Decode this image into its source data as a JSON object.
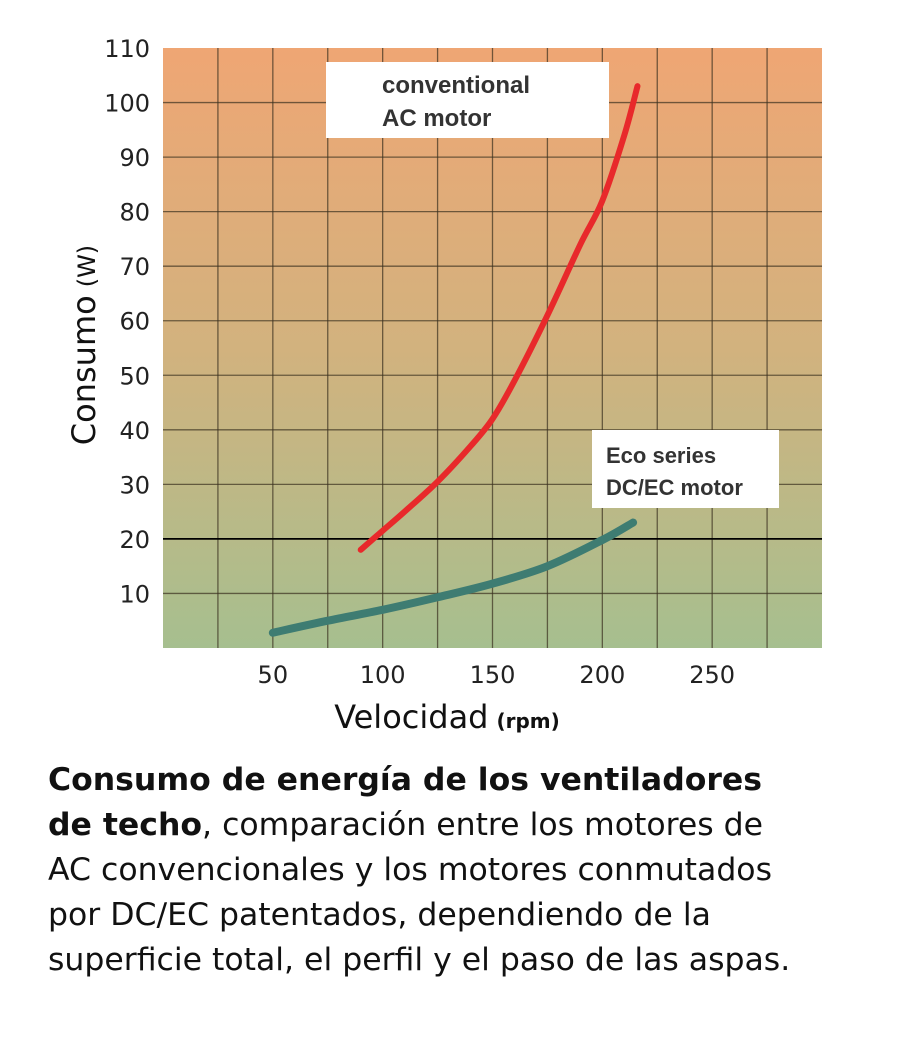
{
  "chart_data": {
    "type": "line",
    "xlabel": "Velocidad",
    "xlabel_unit": "(rpm)",
    "ylabel": "Consumo",
    "ylabel_unit": "(W)",
    "xlim": [
      0,
      300
    ],
    "ylim": [
      0,
      110
    ],
    "x_ticks": [
      50,
      100,
      150,
      200,
      250
    ],
    "y_ticks": [
      10,
      20,
      30,
      40,
      50,
      60,
      70,
      80,
      90,
      100,
      110
    ],
    "grid": true,
    "highlight_line_y": 20,
    "background_gradient": {
      "top": "#efa674",
      "bottom": "#a6bf8f"
    },
    "series": [
      {
        "name": "conventional AC motor",
        "label_lines": [
          "conventional",
          "AC motor"
        ],
        "color": "#e8292b",
        "x": [
          90,
          100,
          110,
          125,
          140,
          150,
          160,
          175,
          190,
          200,
          210,
          216
        ],
        "y": [
          18,
          21.5,
          25,
          30.5,
          37,
          42,
          49,
          61,
          74,
          82,
          94,
          103
        ]
      },
      {
        "name": "Eco series DC/EC motor",
        "label_lines": [
          "Eco series",
          "DC/EC motor"
        ],
        "color": "#3e7c72",
        "x": [
          50,
          75,
          100,
          125,
          150,
          175,
          200,
          214
        ],
        "y": [
          2.8,
          5,
          7,
          9.3,
          11.8,
          15,
          19.8,
          23
        ]
      }
    ]
  },
  "caption": {
    "bold_line1": "Consumo de energía de los ventiladores",
    "bold_line2": "de techo",
    "line2_rest": ", comparación entre los motores de",
    "line3": "AC convencionales y los motores conmutados",
    "line4": "por DC/EC patentados, dependiendo de la",
    "line5": "superficie total, el perfil y el paso de las aspas."
  }
}
